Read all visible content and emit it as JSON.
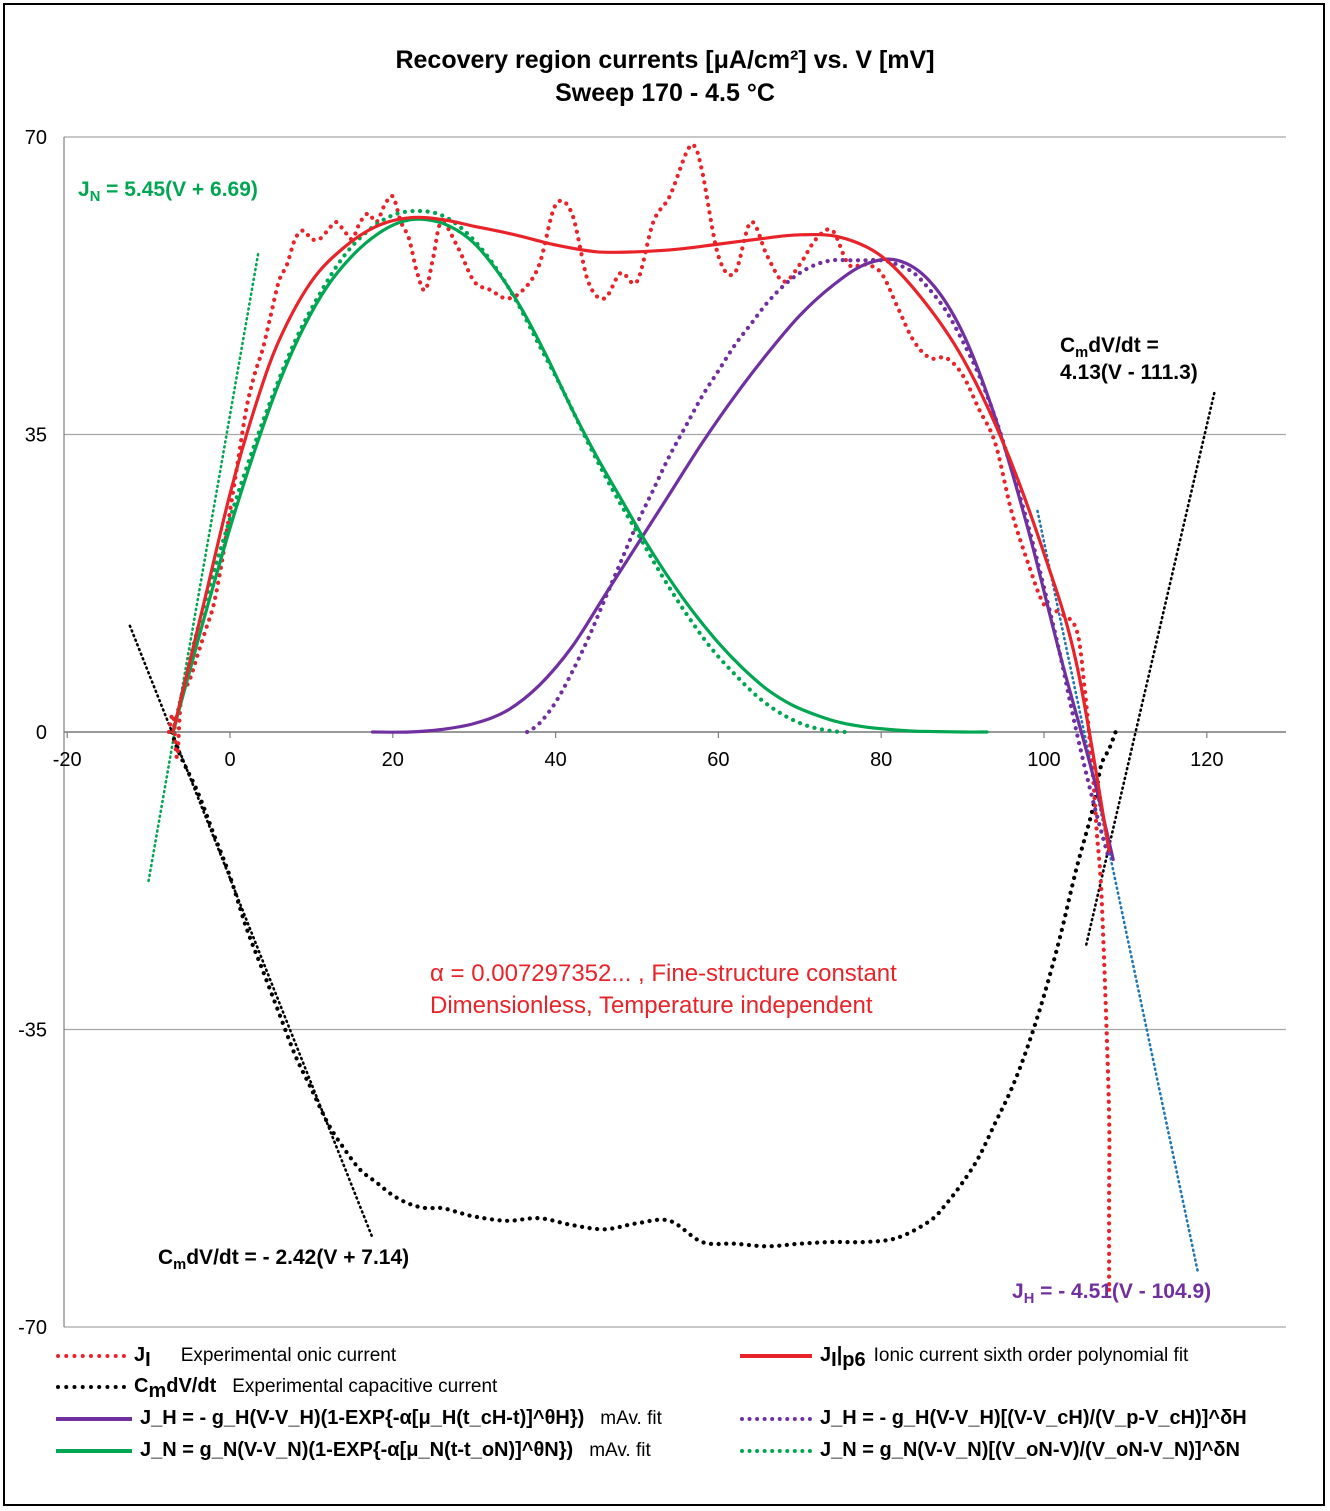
{
  "title_line1": "Recovery region currents [μA/cm²] vs. V [mV]",
  "title_line2": "Sweep 170 - 4.5 °C",
  "colors": {
    "red": "#e8242a",
    "black": "#000000",
    "purple": "#7030a0",
    "green": "#00a651",
    "blue": "#1f77b4",
    "grid": "#a6a6a6"
  },
  "annotations": {
    "jn_line": "J_N = 5.45(V + 6.69)",
    "jn_label": "J",
    "jn_sub": "N",
    "jn_rest": " = 5.45(V + 6.69)",
    "cm_right_1a": "C",
    "cm_right_1b": "m",
    "cm_right_1c": "dV/dt =",
    "cm_right_2": "4.13(V - 111.3)",
    "cm_left_a": "C",
    "cm_left_b": "m",
    "cm_left_c": "dV/dt = - 2.42(V + 7.14)",
    "jh_a": "J",
    "jh_b": "H",
    "jh_c": " = - 4.51(V - 104.9)",
    "alpha_1": "α = 0.007297352... , Fine-structure constant",
    "alpha_2": "Dimensionless, Temperature independent"
  },
  "legend": {
    "ji": "J",
    "ji_sub": "I",
    "ji_desc": "Experimental onic current",
    "jip6": "J",
    "jip6_sub": "I",
    "jip6_sub2": "p6",
    "jip6_desc": "Ionic current sixth order polynomial fit",
    "cm": "C",
    "cm_sub": "m",
    "cm_rest": "dV/dt",
    "cm_desc": "Experimental capacitive current",
    "jh_mav": "J_H = - g_H(V-V_H)(1-EXP{-α[μ_H(t_cH-t)]^θH})",
    "jh_mav_desc": "mAv. fit",
    "jh_dot": "J_H = - g_H(V-V_H)[(V-V_cH)/(V_p-V_cH)]^δH",
    "jn_mav": "J_N = g_N(V-V_N)(1-EXP{-α[μ_N(t-t_oN)]^θN})",
    "jn_mav_desc": "mAv. fit",
    "jn_dot": "J_N = g_N(V-V_N)[(V_oN-V)/(V_oN-V_N)]^δN"
  },
  "chart_data": {
    "type": "line",
    "title": "Recovery region currents [μA/cm²] vs. V [mV] / Sweep 170 - 4.5 °C",
    "xlim": [
      -20,
      130
    ],
    "ylim": [
      -70,
      70
    ],
    "x_ticks": [
      -20,
      0,
      20,
      40,
      60,
      80,
      100,
      120
    ],
    "y_ticks": [
      -70,
      -35,
      0,
      35,
      70
    ],
    "grid": "horizontal",
    "series": [
      {
        "name": "J_I",
        "style": "dotted",
        "color": "#e8242a",
        "x": [
          -7.5,
          -7,
          -6.5,
          -6,
          -5,
          -4,
          -3,
          -2,
          -1,
          0,
          1,
          2,
          3,
          4,
          5,
          6,
          7,
          8,
          9,
          10,
          11,
          12,
          13,
          14,
          15,
          16,
          17,
          18,
          19,
          20,
          21,
          22,
          23,
          24,
          25,
          26,
          28,
          30,
          32,
          34,
          36,
          38,
          40,
          42,
          44,
          46,
          48,
          50,
          52,
          54,
          56,
          57,
          58,
          60,
          62,
          64,
          66,
          68,
          70,
          72,
          74,
          76,
          78,
          80,
          82,
          84,
          86,
          88,
          90,
          92,
          94,
          96,
          98,
          100,
          102,
          104,
          105,
          106,
          106.5,
          107,
          107.5,
          108,
          108,
          108,
          108
        ],
        "y": [
          0,
          2,
          -3,
          4,
          6,
          9,
          12,
          15,
          20,
          26,
          32,
          38,
          42,
          45,
          49,
          53,
          55,
          58,
          59,
          58,
          58,
          59,
          60,
          59,
          58,
          60,
          61,
          60,
          62,
          63,
          60,
          58,
          54,
          52,
          56,
          60,
          57,
          53,
          52,
          51,
          52,
          55,
          62,
          61,
          53,
          51,
          54,
          53,
          60,
          63,
          68,
          69,
          66,
          56,
          54,
          60,
          56,
          53,
          55,
          58,
          59,
          55,
          55,
          54,
          50,
          46,
          44,
          44,
          42,
          38,
          34,
          26,
          20,
          15,
          14,
          12,
          5,
          -5,
          -12,
          -18,
          -30,
          -45,
          -55,
          -65,
          -65
        ]
      },
      {
        "name": "J_I|p6",
        "style": "solid",
        "color": "#e8242a",
        "x": [
          -7,
          -5,
          -3,
          0,
          3,
          6,
          10,
          14,
          18,
          22,
          26,
          30,
          35,
          40,
          45,
          50,
          55,
          60,
          65,
          70,
          75,
          80,
          85,
          90,
          95,
          100,
          104,
          108
        ],
        "y": [
          0,
          8,
          16,
          28,
          38,
          46,
          53,
          57,
          59.5,
          60.5,
          60.3,
          59.5,
          58.5,
          57.3,
          56.5,
          56.5,
          56.8,
          57.4,
          58,
          58.5,
          58.2,
          56,
          51,
          44,
          34,
          21,
          8,
          -14
        ]
      },
      {
        "name": "C_mdV/dt",
        "style": "dotted",
        "color": "#000000",
        "x": [
          -7.2,
          -6,
          -4,
          -2,
          0,
          2,
          4,
          6,
          8,
          10,
          12,
          14,
          16,
          18,
          20,
          22,
          24,
          26,
          28,
          30,
          34,
          38,
          42,
          46,
          50,
          54,
          58,
          62,
          66,
          70,
          74,
          78,
          82,
          86,
          88,
          90,
          92,
          94,
          96,
          98,
          100,
          102,
          104,
          106,
          107,
          108,
          108.8
        ],
        "y": [
          0,
          -3,
          -7,
          -12,
          -17,
          -23,
          -28,
          -33,
          -38,
          -42,
          -46,
          -49,
          -51.5,
          -53,
          -54.5,
          -55.5,
          -56,
          -56,
          -56.5,
          -57,
          -57.5,
          -57.2,
          -58,
          -58.5,
          -57.8,
          -57.5,
          -60,
          -60.2,
          -60.5,
          -60.2,
          -60,
          -60,
          -59.5,
          -57.5,
          -55.5,
          -53,
          -50,
          -46,
          -42,
          -37,
          -31,
          -24,
          -16,
          -9,
          -4,
          -2,
          0
        ]
      },
      {
        "name": "C_mdV/dt = - 2.42(V + 7.14)",
        "style": "dotted",
        "color": "#000000",
        "x": [
          -12.3,
          17.5
        ],
        "y": [
          12.5,
          -59.5
        ]
      },
      {
        "name": "C_mdV/dt = 4.13(V - 111.3)",
        "style": "dotted",
        "color": "#000000",
        "x": [
          105.2,
          121
        ],
        "y": [
          -25,
          40.2
        ]
      },
      {
        "name": "J_N = 5.45(V + 6.69)",
        "style": "dotted",
        "color": "#00a651",
        "x": [
          -10,
          3.5
        ],
        "y": [
          -17.5,
          56.5
        ]
      },
      {
        "name": "J_H = - 4.51(V - 104.9)",
        "style": "dotted",
        "color": "#1f77b4",
        "x": [
          99.2,
          118.9
        ],
        "y": [
          26,
          -63.5
        ]
      },
      {
        "name": "J_H mAv. fit",
        "style": "solid",
        "color": "#7030a0",
        "x": [
          17.5,
          22,
          26,
          30,
          34,
          38,
          42,
          46,
          50,
          54,
          58,
          62,
          66,
          70,
          74,
          78,
          82,
          86,
          90,
          94,
          98,
          102,
          106,
          108.5
        ],
        "y": [
          0,
          0,
          0.3,
          1,
          2.5,
          5.5,
          10,
          16,
          22,
          28,
          34,
          39.5,
          44.5,
          49,
          52.5,
          55,
          55.5,
          53,
          47,
          37,
          24,
          9,
          -5,
          -15
        ]
      },
      {
        "name": "J_H power fit",
        "style": "dotted",
        "color": "#7030a0",
        "x": [
          36.5,
          38,
          40,
          42,
          44,
          46,
          48,
          50,
          52,
          54,
          56,
          58,
          60,
          62,
          64,
          66,
          68,
          70,
          72,
          74,
          76,
          78,
          80,
          82,
          84,
          86,
          88,
          90,
          92,
          94,
          96,
          98,
          100,
          102,
          104,
          106,
          108
        ],
        "y": [
          0,
          1,
          3.5,
          7,
          11,
          15.5,
          20,
          24.5,
          28.5,
          32.5,
          36,
          39.5,
          42.5,
          45.5,
          48,
          50.5,
          52.5,
          54,
          55,
          55.5,
          55.5,
          55.5,
          55.5,
          55,
          54,
          52,
          49.5,
          46,
          42,
          37,
          31,
          24.5,
          17,
          9,
          0,
          -8,
          -15
        ]
      },
      {
        "name": "J_N mAv. fit",
        "style": "solid",
        "color": "#00a651",
        "x": [
          -7,
          -5,
          -3,
          0,
          3,
          6,
          9,
          12,
          15,
          18,
          21,
          24,
          27,
          30,
          33,
          36,
          39,
          42,
          45,
          48,
          51,
          54,
          57,
          60,
          63,
          66,
          69,
          72,
          75,
          78,
          81,
          84,
          87,
          90,
          93
        ],
        "y": [
          0,
          7,
          14,
          24,
          33,
          41,
          47.5,
          52.5,
          56,
          58.5,
          60,
          60.3,
          59.5,
          57.5,
          54,
          49.5,
          44,
          38,
          32.5,
          27.5,
          22.5,
          18,
          14,
          10.5,
          7.5,
          5,
          3.2,
          2,
          1.1,
          0.6,
          0.3,
          0.1,
          0.05,
          0,
          0
        ]
      },
      {
        "name": "J_N power fit",
        "style": "dotted",
        "color": "#00a651",
        "x": [
          -7,
          -4,
          -1,
          2,
          5,
          8,
          11,
          14,
          17,
          20,
          23,
          26,
          29,
          32,
          35,
          38,
          41,
          44,
          47,
          50,
          53,
          56,
          59,
          62,
          65,
          68,
          71,
          74,
          76
        ],
        "y": [
          0,
          12,
          22,
          31,
          39,
          46,
          51.5,
          56,
          59,
          60.8,
          61.3,
          60.8,
          58.8,
          55.5,
          51,
          45.5,
          40,
          34,
          28.5,
          23.5,
          18.5,
          14,
          10,
          6.8,
          4,
          2,
          0.7,
          0.1,
          0
        ]
      }
    ]
  }
}
